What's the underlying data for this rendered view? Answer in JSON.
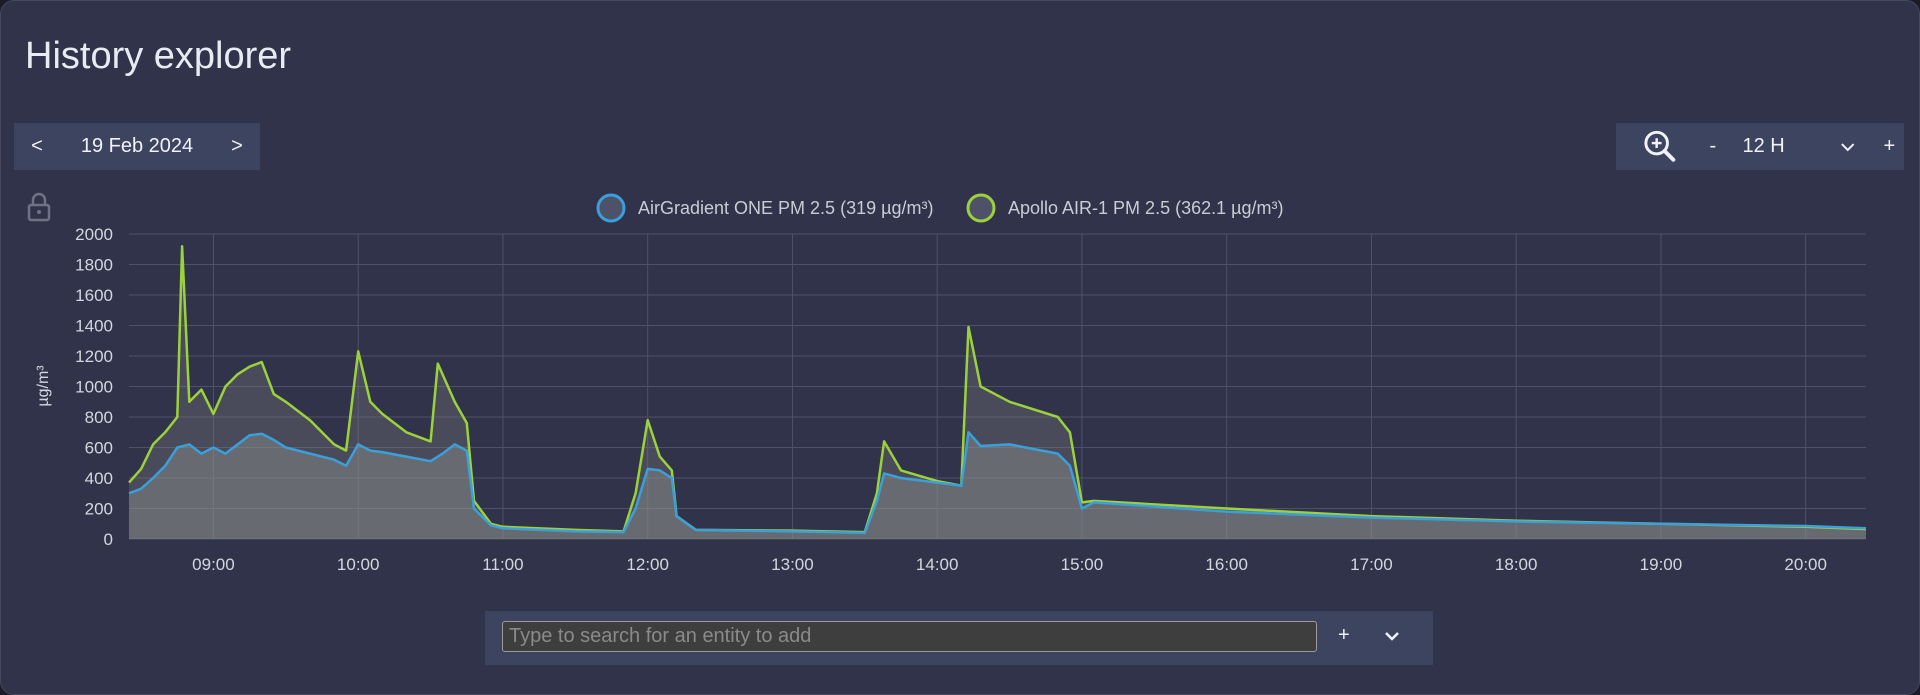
{
  "app": {
    "title": "History explorer"
  },
  "date_nav": {
    "prev_label": "<",
    "date": "19 Feb 2024",
    "next_label": ">"
  },
  "zoom": {
    "minus_label": "-",
    "value": "12 H",
    "plus_label": "+"
  },
  "search": {
    "placeholder": "Type to search for an entity to add",
    "add_label": "+"
  },
  "icons": [
    "lock-icon",
    "zoom-in-icon",
    "chevron-down-icon"
  ],
  "colors": {
    "airgradient": "#3b9fd9",
    "apollo": "#9bd23c",
    "background": "#31334a",
    "toolbar": "#3d4460"
  },
  "chart_data": {
    "type": "line",
    "title": "",
    "xlabel": "",
    "ylabel": "µg/m³",
    "ylim": [
      0,
      2000
    ],
    "yticks": [
      "0",
      "200",
      "400",
      "600",
      "800",
      "1000",
      "1200",
      "1400",
      "1600",
      "1800",
      "2000"
    ],
    "xlim": [
      "08:25",
      "20:25"
    ],
    "xticks": [
      "09:00",
      "10:00",
      "11:00",
      "12:00",
      "13:00",
      "14:00",
      "15:00",
      "16:00",
      "17:00",
      "18:00",
      "19:00",
      "20:00"
    ],
    "grid": true,
    "legend_position": "top-center",
    "series": [
      {
        "name": "AirGradient ONE PM 2.5 (319 µg/m³)",
        "color": "#3b9fd9",
        "points": [
          [
            "08:25",
            300
          ],
          [
            "08:30",
            330
          ],
          [
            "08:35",
            400
          ],
          [
            "08:40",
            480
          ],
          [
            "08:45",
            600
          ],
          [
            "08:50",
            620
          ],
          [
            "08:55",
            560
          ],
          [
            "09:00",
            600
          ],
          [
            "09:05",
            560
          ],
          [
            "09:10",
            620
          ],
          [
            "09:15",
            680
          ],
          [
            "09:20",
            690
          ],
          [
            "09:25",
            650
          ],
          [
            "09:30",
            600
          ],
          [
            "09:40",
            560
          ],
          [
            "09:50",
            520
          ],
          [
            "09:55",
            480
          ],
          [
            "10:00",
            620
          ],
          [
            "10:05",
            580
          ],
          [
            "10:10",
            570
          ],
          [
            "10:20",
            540
          ],
          [
            "10:30",
            510
          ],
          [
            "10:35",
            560
          ],
          [
            "10:40",
            620
          ],
          [
            "10:45",
            580
          ],
          [
            "10:48",
            200
          ],
          [
            "10:55",
            90
          ],
          [
            "11:00",
            70
          ],
          [
            "11:30",
            50
          ],
          [
            "11:50",
            45
          ],
          [
            "11:55",
            200
          ],
          [
            "12:00",
            460
          ],
          [
            "12:05",
            450
          ],
          [
            "12:10",
            400
          ],
          [
            "12:12",
            150
          ],
          [
            "12:20",
            60
          ],
          [
            "13:00",
            50
          ],
          [
            "13:30",
            40
          ],
          [
            "13:35",
            250
          ],
          [
            "13:38",
            430
          ],
          [
            "13:45",
            400
          ],
          [
            "14:00",
            370
          ],
          [
            "14:10",
            350
          ],
          [
            "14:13",
            700
          ],
          [
            "14:18",
            610
          ],
          [
            "14:30",
            620
          ],
          [
            "14:50",
            560
          ],
          [
            "14:55",
            480
          ],
          [
            "15:00",
            200
          ],
          [
            "15:05",
            240
          ],
          [
            "16:00",
            180
          ],
          [
            "17:00",
            140
          ],
          [
            "18:00",
            115
          ],
          [
            "19:00",
            100
          ],
          [
            "20:00",
            85
          ],
          [
            "20:25",
            70
          ]
        ]
      },
      {
        "name": "Apollo AIR-1 PM 2.5 (362.1 µg/m³)",
        "color": "#9bd23c",
        "points": [
          [
            "08:25",
            370
          ],
          [
            "08:30",
            460
          ],
          [
            "08:35",
            620
          ],
          [
            "08:40",
            700
          ],
          [
            "08:45",
            800
          ],
          [
            "08:47",
            1920
          ],
          [
            "08:50",
            900
          ],
          [
            "08:55",
            980
          ],
          [
            "09:00",
            820
          ],
          [
            "09:05",
            1000
          ],
          [
            "09:10",
            1080
          ],
          [
            "09:15",
            1130
          ],
          [
            "09:20",
            1160
          ],
          [
            "09:25",
            950
          ],
          [
            "09:30",
            900
          ],
          [
            "09:40",
            780
          ],
          [
            "09:50",
            620
          ],
          [
            "09:55",
            580
          ],
          [
            "10:00",
            1230
          ],
          [
            "10:05",
            900
          ],
          [
            "10:10",
            820
          ],
          [
            "10:20",
            700
          ],
          [
            "10:30",
            640
          ],
          [
            "10:33",
            1150
          ],
          [
            "10:40",
            900
          ],
          [
            "10:45",
            760
          ],
          [
            "10:48",
            250
          ],
          [
            "10:55",
            100
          ],
          [
            "11:00",
            80
          ],
          [
            "11:30",
            60
          ],
          [
            "11:50",
            50
          ],
          [
            "11:55",
            300
          ],
          [
            "12:00",
            780
          ],
          [
            "12:05",
            540
          ],
          [
            "12:10",
            450
          ],
          [
            "12:12",
            150
          ],
          [
            "12:20",
            60
          ],
          [
            "13:00",
            55
          ],
          [
            "13:30",
            45
          ],
          [
            "13:35",
            300
          ],
          [
            "13:38",
            640
          ],
          [
            "13:45",
            450
          ],
          [
            "14:00",
            380
          ],
          [
            "14:10",
            350
          ],
          [
            "14:13",
            1390
          ],
          [
            "14:18",
            1000
          ],
          [
            "14:30",
            900
          ],
          [
            "14:50",
            800
          ],
          [
            "14:55",
            700
          ],
          [
            "15:00",
            240
          ],
          [
            "15:05",
            250
          ],
          [
            "16:00",
            200
          ],
          [
            "17:00",
            150
          ],
          [
            "18:00",
            120
          ],
          [
            "19:00",
            100
          ],
          [
            "20:00",
            80
          ],
          [
            "20:25",
            65
          ]
        ]
      }
    ]
  }
}
